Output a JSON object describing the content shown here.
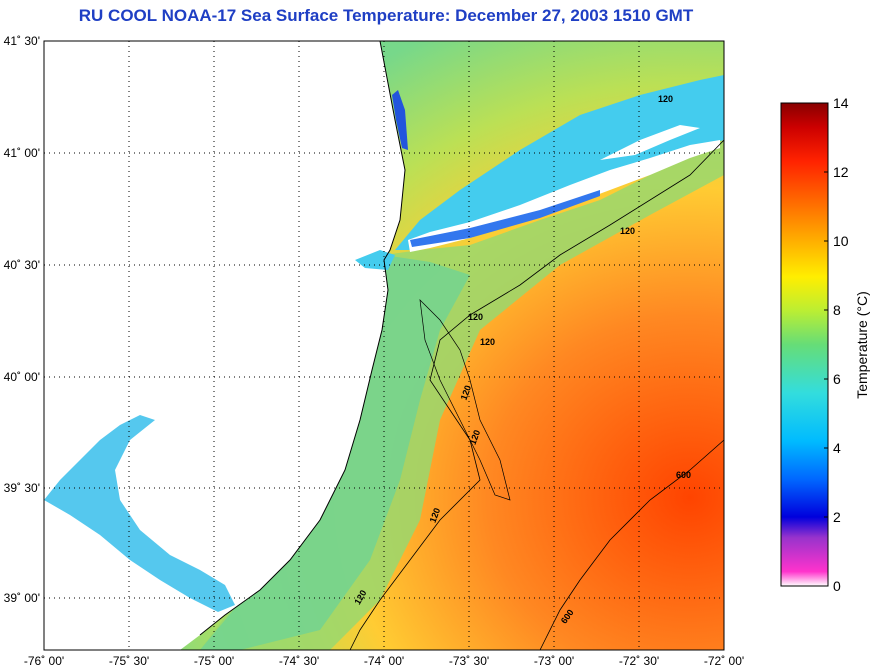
{
  "title": "RU COOL  NOAA-17  Sea Surface Temperature:  December 27, 2003 1510 GMT",
  "lat_labels": [
    "41˚ 30'",
    "41˚ 00'",
    "40˚ 30'",
    "40˚ 00'",
    "39˚ 30'",
    "39˚ 00'"
  ],
  "lon_labels": [
    "-76˚ 00'",
    "-75˚ 30'",
    "-75˚ 00'",
    "-74˚ 30'",
    "-74˚ 00'",
    "-73˚ 30'",
    "-73˚ 00'",
    "-72˚ 30'",
    "-72˚ 00'"
  ],
  "colorbar": {
    "label": "Temperature (°C)",
    "ticks": [
      "14",
      "12",
      "10",
      "8",
      "6",
      "4",
      "2",
      "0"
    ]
  },
  "contour_labels": [
    "120",
    "120",
    "120",
    "120",
    "120",
    "120",
    "120",
    "120",
    "600",
    "600"
  ],
  "colors": {
    "title": "#1f3fc4",
    "land": "#ffffff",
    "cold": "#33ccff",
    "mid": "#7fd87f",
    "warm": "#ff8822"
  }
}
